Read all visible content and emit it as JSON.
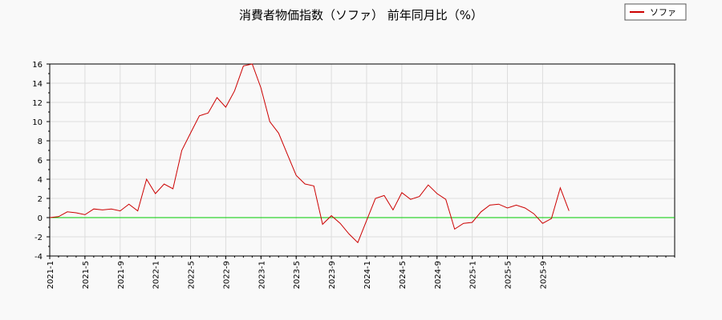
{
  "chart_data": {
    "type": "line",
    "title": "消費者物価指数（ソファ） 前年同月比（%）",
    "xlabel": "",
    "ylabel": "",
    "x_tick_labels": [
      "2021-1",
      "2021-5",
      "2021-9",
      "2022-1",
      "2022-5",
      "2022-9",
      "2023-1",
      "2023-5",
      "2023-9",
      "2024-1",
      "2024-5",
      "2024-9",
      "2025-1",
      "2025-5",
      "2025-9"
    ],
    "y_ticks": [
      -4,
      -2,
      0,
      2,
      4,
      6,
      8,
      10,
      12,
      14,
      16
    ],
    "ylim": [
      -4,
      16
    ],
    "x_range": [
      "2021-1",
      "2026-12"
    ],
    "grid": true,
    "legend_position": "top-right",
    "zero_line": {
      "value": 0,
      "color": "#00cc00"
    },
    "series": [
      {
        "name": "ソファ",
        "color": "#cc0000",
        "start": "2021-1",
        "values": [
          0.0,
          0.1,
          0.6,
          0.5,
          0.3,
          0.9,
          0.8,
          0.9,
          0.7,
          1.4,
          0.7,
          4.0,
          2.5,
          3.5,
          3.0,
          7.0,
          8.8,
          10.6,
          10.9,
          12.5,
          11.5,
          13.2,
          15.8,
          16.0,
          13.5,
          10.0,
          8.8,
          6.6,
          4.4,
          3.5,
          3.3,
          -0.7,
          0.2,
          -0.6,
          -1.7,
          -2.6,
          -0.3,
          2.0,
          2.3,
          0.8,
          2.6,
          1.9,
          2.2,
          3.4,
          2.5,
          1.9,
          -1.2,
          -0.6,
          -0.5,
          0.6,
          1.3,
          1.4,
          1.0,
          1.3,
          1.0,
          0.4,
          -0.6,
          -0.1,
          3.1,
          0.7
        ]
      }
    ]
  }
}
